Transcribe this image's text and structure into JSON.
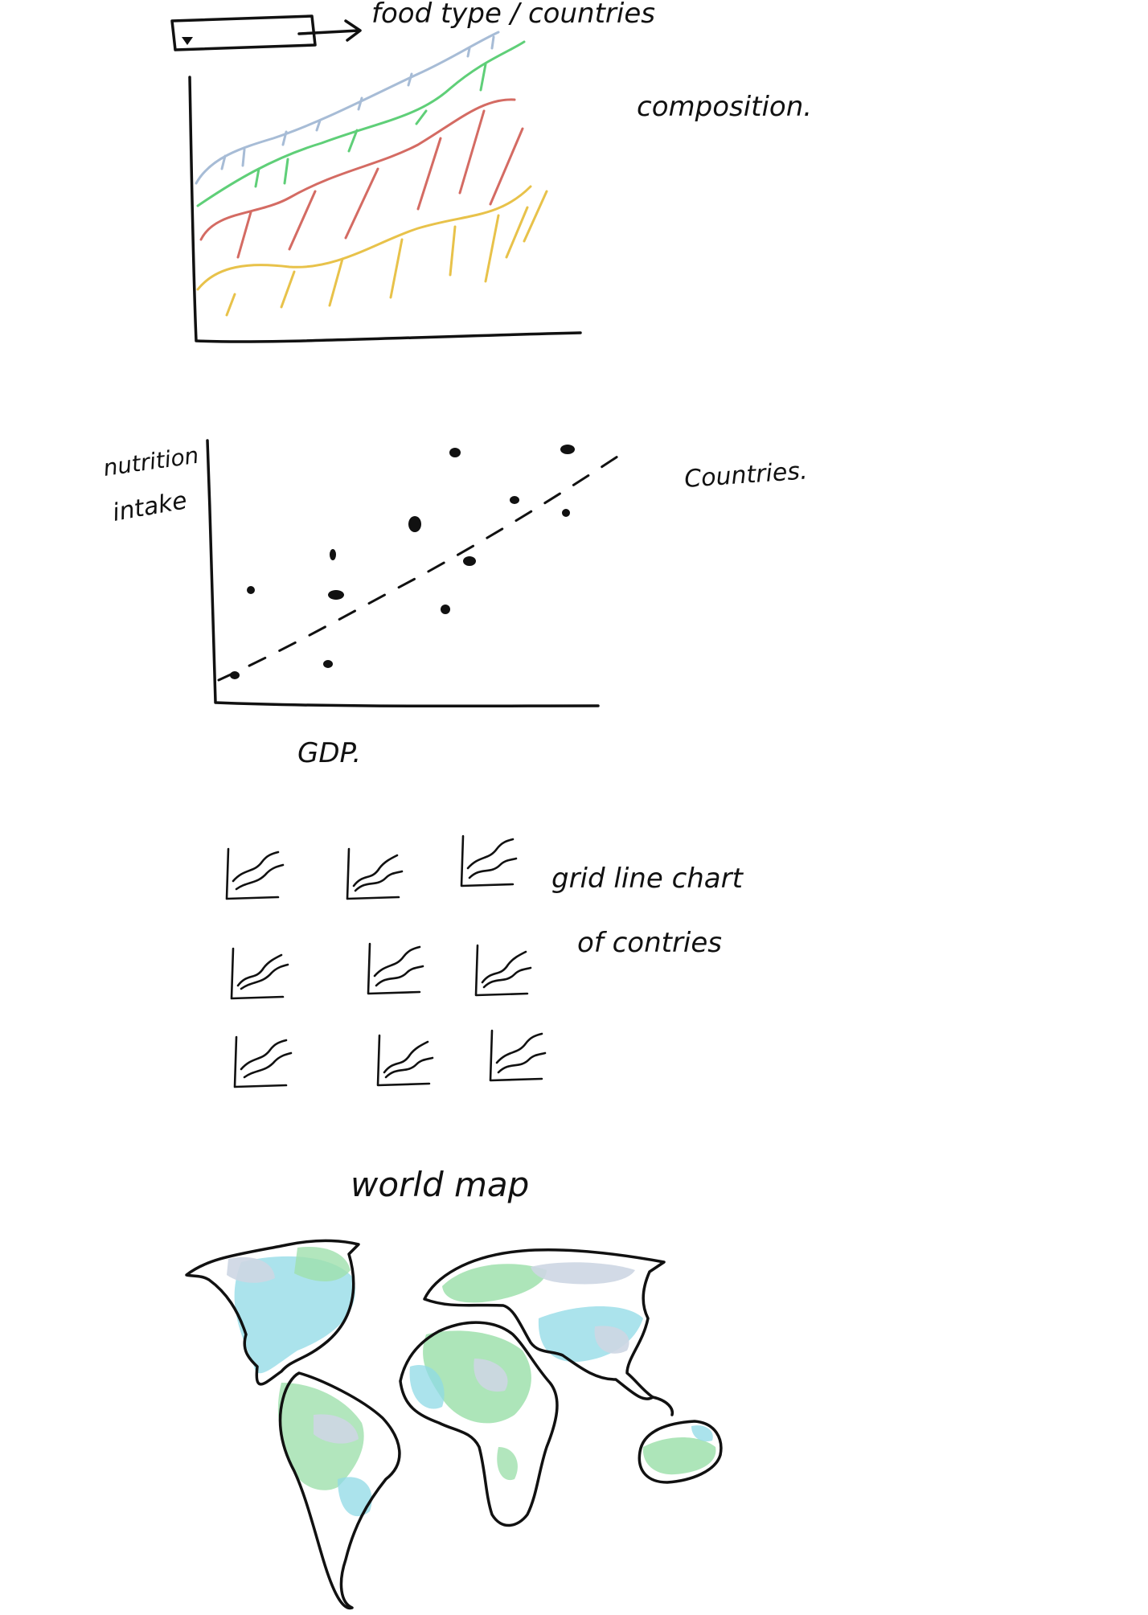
{
  "sketch": {
    "stacked": {
      "dropdown_label": "food type / countries",
      "annotation": "composition.",
      "colors": [
        "#e8c24a",
        "#d46b63",
        "#5fcf78",
        "#a7bcd6"
      ]
    },
    "scatter": {
      "ylabel_line1": "nutrition",
      "ylabel_line2": "intake",
      "xlabel": "GDP.",
      "annotation": "Countries."
    },
    "grid": {
      "annotation_line1": "grid line chart",
      "annotation_line2": "of contries"
    },
    "map": {
      "title": "world map",
      "colors": [
        "#9fe0ad",
        "#8fd9e6",
        "#cdd6e3"
      ]
    }
  },
  "icons": [
    "dropdown-caret-icon",
    "arrow-right-icon",
    "mini-line-chart-icon"
  ]
}
